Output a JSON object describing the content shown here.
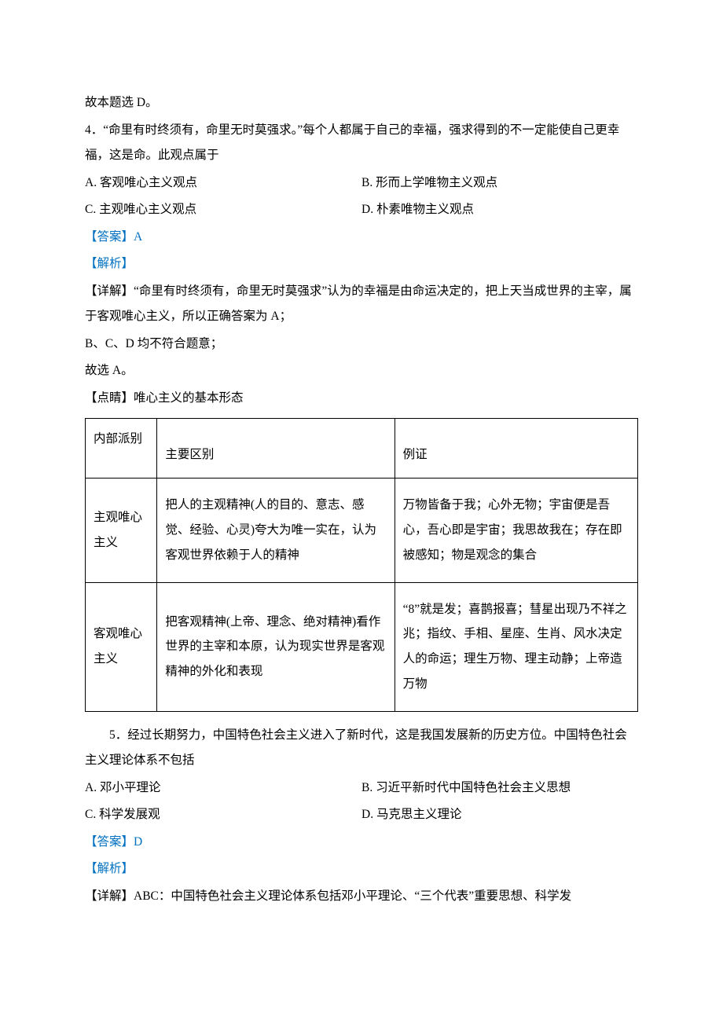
{
  "p1": "故本题选 D。",
  "q4": {
    "stem": "4．“命里有时终须有，命里无时莫强求。”每个人都属于自己的幸福，强求得到的不一定能使自己更幸福，这是命。此观点属于",
    "optA": "A. 客观唯心主义观点",
    "optB": "B. 形而上学唯物主义观点",
    "optC": "C. 主观唯心主义观点",
    "optD": "D. 朴素唯物主义观点",
    "answer": "【答案】A",
    "analysis": "【解析】",
    "detail1": "【详解】“命里有时终须有，命里无时莫强求”认为的幸福是由命运决定的，把上天当成世界的主宰，属于客观唯心主义，所以正确答案为 A；",
    "detail2": "B、C、D 均不符合题意；",
    "detail3": "故选 A。",
    "focus": "【点睛】唯心主义的基本形态"
  },
  "table": {
    "h1": "内部派别",
    "h2": "主要区别",
    "h3": "例证",
    "r1c1": "主观唯心主义",
    "r1c2": "把人的主观精神(人的目的、意志、感觉、经验、心灵)夸大为唯一实在，认为客观世界依赖于人的精神",
    "r1c3": "万物皆备于我；心外无物；宇宙便是吾心，吾心即是宇宙；我思故我在；存在即被感知；物是观念的集合",
    "r2c1": "客观唯心主义",
    "r2c2": "把客观精神(上帝、理念、绝对精神)看作世界的主宰和本原，认为现实世界是客观精神的外化和表现",
    "r2c3": "“8”就是发；喜鹊报喜；彗星出现乃不祥之兆；指纹、手相、星座、生肖、风水决定人的命运；理生万物、理主动静；上帝造万物"
  },
  "q5": {
    "stem": "5．经过长期努力，中国特色社会主义进入了新时代，这是我国发展新的历史方位。中国特色社会主义理论体系不包括",
    "optA": "A. 邓小平理论",
    "optB": "B. 习近平新时代中国特色社会主义思想",
    "optC": "C. 科学发展观",
    "optD": "D. 马克思主义理论",
    "answer": "【答案】D",
    "analysis": "【解析】",
    "detail": "【详解】ABC：中国特色社会主义理论体系包括邓小平理论、“三个代表”重要思想、科学发"
  }
}
